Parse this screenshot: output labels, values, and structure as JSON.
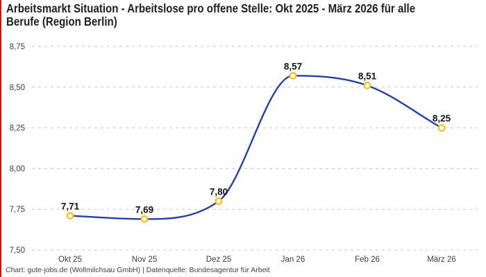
{
  "accent_color": "#c81414",
  "header": {
    "title_line1": "Arbeitsmarkt Situation - Arbeitslose pro offene Stelle: Okt 2025 - März 2026 für alle",
    "title_line2": "Berufe (Region Berlin)"
  },
  "chart_data": {
    "type": "line",
    "title": "Arbeitsmarkt Situation - Arbeitslose pro offene Stelle: Okt 2025 - März 2026 für alle Berufe (Region Berlin)",
    "categories": [
      "Okt 25",
      "Nov 25",
      "Dez 25",
      "Jan 26",
      "Feb 26",
      "März 26"
    ],
    "values": [
      7.71,
      7.69,
      7.8,
      8.57,
      8.51,
      8.25
    ],
    "point_labels": [
      "7,71",
      "7,69",
      "7,80",
      "8,57",
      "8,51",
      "8,25"
    ],
    "y_ticks": [
      {
        "value": 7.5,
        "label": "7,50"
      },
      {
        "value": 7.75,
        "label": "7,75"
      },
      {
        "value": 8.0,
        "label": "8,00"
      },
      {
        "value": 8.25,
        "label": "8,25"
      },
      {
        "value": 8.5,
        "label": "8,50"
      },
      {
        "value": 8.75,
        "label": "8,75"
      }
    ],
    "ylim": [
      7.5,
      8.75
    ],
    "xlabel": "",
    "ylabel": "",
    "grid": "horizontal-dashed",
    "legend": "none",
    "smoothing": "monotone",
    "line_color": "#2240a4",
    "grid_color": "#c9c9c9",
    "marker_stroke": "#ffbe14",
    "marker_fill": "#ffffff"
  },
  "footer": {
    "credit": "Chart: gute-jobs.de (Wollmilchsau GmbH) | Datenquelle: Bundesagentur für Arbeit"
  }
}
